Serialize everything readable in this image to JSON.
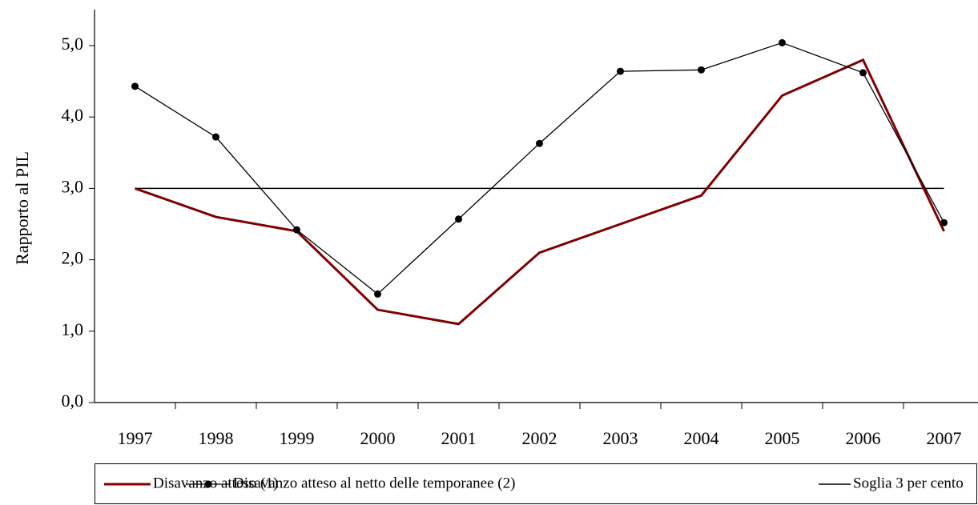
{
  "chart_data": {
    "type": "line",
    "y_label": "Rapporto al PIL",
    "categories": [
      "1997",
      "1998",
      "1999",
      "2000",
      "2001",
      "2002",
      "2003",
      "2004",
      "2005",
      "2006",
      "2007"
    ],
    "series": [
      {
        "name": "Disavanzo atteso (1)",
        "color": "#800000",
        "marker": false,
        "width": 3,
        "values": [
          3.0,
          2.6,
          2.4,
          1.3,
          1.1,
          2.1,
          2.5,
          2.9,
          4.3,
          4.8,
          2.4
        ]
      },
      {
        "name": "Disavanzo atteso al netto delle temporanee (2)",
        "color": "#000000",
        "marker": true,
        "width": 1.3,
        "values": [
          4.43,
          3.72,
          2.42,
          1.52,
          2.57,
          3.63,
          4.64,
          4.66,
          5.04,
          4.62,
          2.52
        ]
      },
      {
        "name": "Soglia 3 per cento",
        "color": "#000000",
        "marker": false,
        "width": 1.5,
        "values": [
          3,
          3,
          3,
          3,
          3,
          3,
          3,
          3,
          3,
          3,
          3
        ]
      }
    ],
    "ylim": [
      0,
      5
    ],
    "yticks": [
      {
        "value": 0,
        "label": "0,0"
      },
      {
        "value": 1,
        "label": "1,0"
      },
      {
        "value": 2,
        "label": "2,0"
      },
      {
        "value": 3,
        "label": "3,0"
      },
      {
        "value": 4,
        "label": "4,0"
      },
      {
        "value": 5,
        "label": "5,0"
      }
    ],
    "grid": false,
    "legend": "bottom"
  }
}
